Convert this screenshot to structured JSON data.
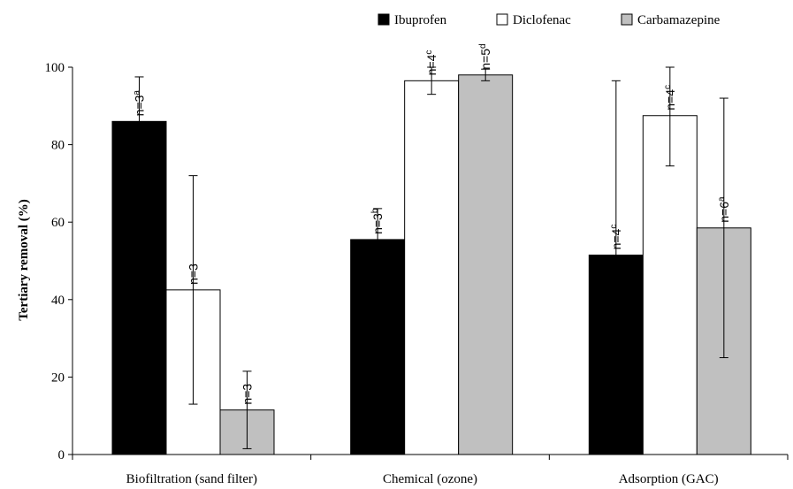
{
  "chart_data": {
    "type": "bar",
    "title": "",
    "xlabel": "",
    "ylabel": "Tertiary removal (%)",
    "ylim": [
      0,
      100
    ],
    "yticks": [
      "0",
      "20",
      "40",
      "60",
      "80",
      "100"
    ],
    "categories": [
      "Biofiltration (sand filter)",
      "Chemical (ozone)",
      "Adsorption (GAC)"
    ],
    "legend_position": "top-right",
    "series": [
      {
        "name": "Ibuprofen",
        "color": "#000000",
        "values": [
          86,
          55.5,
          51.5
        ],
        "err_low": [
          0,
          47.5,
          0
        ],
        "err_high": [
          97.5,
          63.5,
          96.5
        ],
        "n_base": [
          "n=3",
          "n=3",
          "n=4"
        ],
        "n_sup": [
          "a",
          "b",
          "c"
        ]
      },
      {
        "name": "Diclofenac",
        "color": "#ffffff",
        "values": [
          42.5,
          96.5,
          87.5
        ],
        "err_low": [
          13,
          93,
          74.5
        ],
        "err_high": [
          72,
          100,
          100
        ],
        "n_base": [
          "n=3",
          "n=4",
          "n=4"
        ],
        "n_sup": [
          "",
          "c",
          "c"
        ]
      },
      {
        "name": "Carbamazepine",
        "color": "#c0c0c0",
        "values": [
          11.5,
          98,
          58.5
        ],
        "err_low": [
          1.5,
          96.5,
          25
        ],
        "err_high": [
          21.5,
          99.5,
          92
        ],
        "n_base": [
          "n=3",
          "n=5",
          "n=6"
        ],
        "n_sup": [
          "",
          "d",
          "a"
        ]
      }
    ]
  }
}
